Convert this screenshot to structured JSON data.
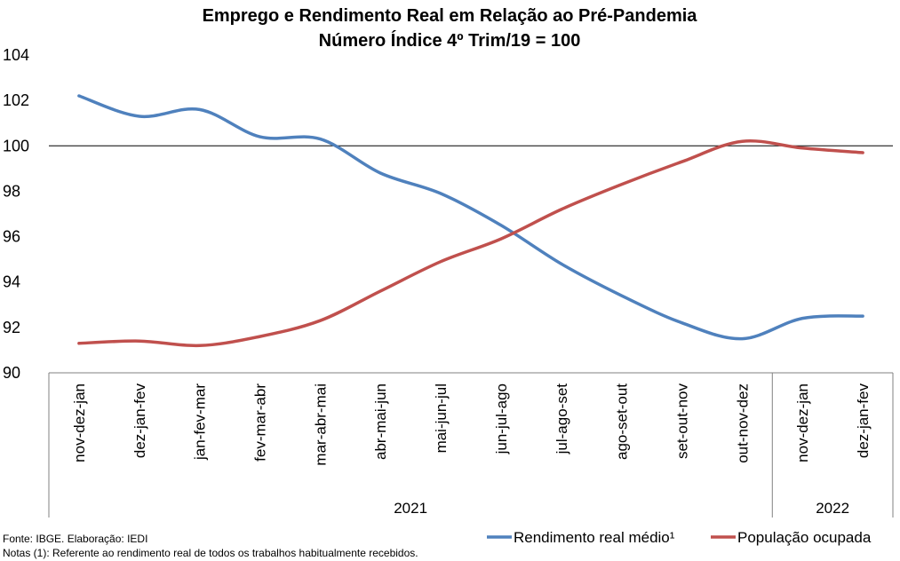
{
  "chart_data": {
    "type": "line",
    "title": "Emprego e Rendimento Real em Relação ao Pré-Pandemia",
    "subtitle": "Número Índice 4º Trim/19 = 100",
    "categories": [
      "nov-dez-jan",
      "dez-jan-fev",
      "jan-fev-mar",
      "fev-mar-abr",
      "mar-abr-mai",
      "abr-mai-jun",
      "mai-jun-jul",
      "jun-jul-ago",
      "jul-ago-set",
      "ago-set-out",
      "set-out-nov",
      "out-nov-dez",
      "nov-dez-jan",
      "dez-jan-fev"
    ],
    "year_groups": [
      {
        "label": "2021",
        "start": 0,
        "end": 11
      },
      {
        "label": "2022",
        "start": 12,
        "end": 13
      }
    ],
    "ylim": [
      90,
      104
    ],
    "yticks": [
      "90",
      "92",
      "94",
      "96",
      "98",
      "100",
      "102",
      "104"
    ],
    "reference_line": 100,
    "series": [
      {
        "name": "Rendimento real médio¹",
        "color": "#4F81BD",
        "values": [
          102.2,
          101.3,
          101.6,
          100.4,
          100.3,
          98.8,
          97.9,
          96.5,
          94.8,
          93.4,
          92.2,
          91.5,
          92.4,
          92.5
        ]
      },
      {
        "name": "População ocupada",
        "color": "#C0504D",
        "values": [
          91.3,
          91.4,
          91.2,
          91.6,
          92.3,
          93.6,
          94.9,
          95.9,
          97.2,
          98.3,
          99.3,
          100.2,
          99.9,
          99.7
        ]
      }
    ]
  },
  "notes": {
    "source": "Fonte: IBGE. Elaboração: IEDI",
    "footnote": "Notas (1): Referente ao rendimento real de todos os trabalhos habitualmente recebidos."
  }
}
